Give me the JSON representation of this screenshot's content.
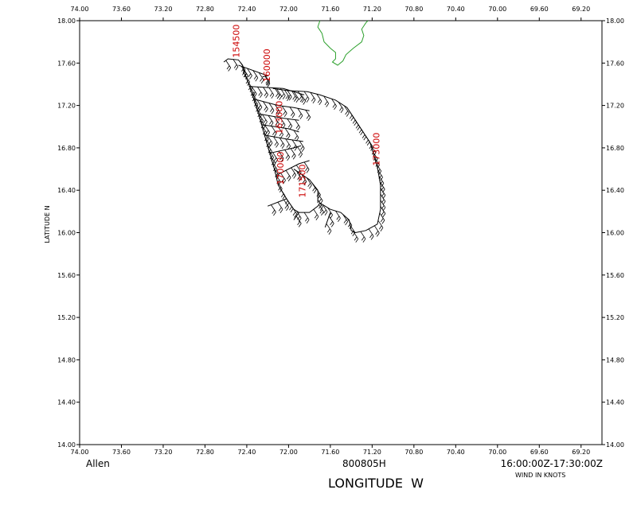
{
  "chart_data": {
    "type": "scatter",
    "xlabel": "LONGITUDE  W",
    "ylabel": "LATITUDE  N",
    "storm_name": "Allen",
    "flight_id": "800805H",
    "time_range": "16:00:00Z-17:30:00Z",
    "units_note": "WIND IN KNOTS",
    "xlim": [
      74.0,
      69.0
    ],
    "ylim": [
      14.0,
      18.0
    ],
    "x_ticks": [
      "74.00",
      "73.60",
      "73.20",
      "72.80",
      "72.40",
      "72.00",
      "71.60",
      "71.20",
      "70.80",
      "70.40",
      "70.00",
      "69.60",
      "69.20"
    ],
    "y_ticks": [
      "14.00",
      "14.40",
      "14.80",
      "15.20",
      "15.60",
      "16.00",
      "16.40",
      "16.80",
      "17.20",
      "17.60",
      "18.00"
    ],
    "time_labels": [
      {
        "text": "154500",
        "lon": 72.47,
        "lat": 17.65
      },
      {
        "text": "160000",
        "lon": 72.18,
        "lat": 17.42
      },
      {
        "text": "163000",
        "lon": 72.06,
        "lat": 16.93
      },
      {
        "text": "170000",
        "lon": 72.05,
        "lat": 16.45
      },
      {
        "text": "171500",
        "lon": 71.84,
        "lat": 16.33
      },
      {
        "text": "173000",
        "lon": 71.13,
        "lat": 16.63
      }
    ],
    "series": [
      {
        "points": [
          [
            72.62,
            17.61
          ],
          [
            72.58,
            17.64
          ],
          [
            72.48,
            17.63
          ],
          [
            72.44,
            17.58
          ],
          [
            72.43,
            17.52
          ],
          [
            72.38,
            17.4
          ],
          [
            72.33,
            17.25
          ],
          [
            72.28,
            17.1
          ],
          [
            72.23,
            16.92
          ],
          [
            72.18,
            16.75
          ],
          [
            72.13,
            16.58
          ],
          [
            72.1,
            16.45
          ],
          [
            72.02,
            16.32
          ],
          [
            71.95,
            16.22
          ],
          [
            71.9,
            16.19
          ],
          [
            71.8,
            16.19
          ],
          [
            71.72,
            16.25
          ],
          [
            71.7,
            16.28
          ],
          [
            71.6,
            16.22
          ],
          [
            71.5,
            16.19
          ],
          [
            71.42,
            16.12
          ],
          [
            71.4,
            16.02
          ],
          [
            71.36,
            16.0
          ],
          [
            71.26,
            16.02
          ],
          [
            71.15,
            16.08
          ],
          [
            71.12,
            16.22
          ],
          [
            71.12,
            16.45
          ],
          [
            71.15,
            16.62
          ],
          [
            71.22,
            16.85
          ],
          [
            71.32,
            17.0
          ],
          [
            71.44,
            17.18
          ],
          [
            71.55,
            17.25
          ],
          [
            71.7,
            17.3
          ],
          [
            71.82,
            17.33
          ],
          [
            72.0,
            17.34
          ],
          [
            72.15,
            17.36
          ]
        ]
      }
    ],
    "track_cross_legs": [
      [
        [
          72.48,
          17.58
        ],
        [
          72.2,
          17.48
        ],
        [
          72.25,
          17.47
        ]
      ],
      [
        [
          72.38,
          17.38
        ],
        [
          72.05,
          17.36
        ],
        [
          71.85,
          17.3
        ]
      ],
      [
        [
          72.33,
          17.26
        ],
        [
          72.1,
          17.2
        ],
        [
          71.95,
          17.18
        ],
        [
          71.8,
          17.15
        ]
      ],
      [
        [
          72.28,
          17.12
        ],
        [
          72.05,
          17.08
        ],
        [
          71.9,
          17.06
        ]
      ],
      [
        [
          72.26,
          17.02
        ],
        [
          72.0,
          16.98
        ],
        [
          71.9,
          16.95
        ]
      ],
      [
        [
          72.23,
          16.92
        ],
        [
          72.0,
          16.88
        ],
        [
          71.86,
          16.86
        ]
      ],
      [
        [
          72.18,
          16.75
        ],
        [
          71.95,
          16.8
        ],
        [
          71.88,
          16.82
        ]
      ],
      [
        [
          72.1,
          16.55
        ],
        [
          71.9,
          16.65
        ],
        [
          71.8,
          16.68
        ]
      ],
      [
        [
          71.95,
          16.6
        ],
        [
          71.8,
          16.5
        ],
        [
          71.72,
          16.4
        ],
        [
          71.72,
          16.28
        ]
      ],
      [
        [
          72.02,
          16.32
        ],
        [
          72.07,
          16.3
        ],
        [
          72.2,
          16.25
        ]
      ],
      [
        [
          71.9,
          16.19
        ],
        [
          71.95,
          16.12
        ]
      ],
      [
        [
          71.6,
          16.19
        ],
        [
          71.65,
          16.05
        ]
      ]
    ],
    "coast": [
      [
        71.7,
        18.0
      ],
      [
        71.72,
        17.94
      ],
      [
        71.68,
        17.88
      ],
      [
        71.66,
        17.8
      ],
      [
        71.6,
        17.74
      ],
      [
        71.55,
        17.7
      ],
      [
        71.55,
        17.64
      ],
      [
        71.58,
        17.61
      ],
      [
        71.53,
        17.58
      ],
      [
        71.48,
        17.62
      ],
      [
        71.45,
        17.68
      ],
      [
        71.38,
        17.74
      ],
      [
        71.3,
        17.8
      ],
      [
        71.28,
        17.86
      ],
      [
        71.3,
        17.92
      ],
      [
        71.26,
        17.98
      ],
      [
        71.24,
        18.0
      ]
    ]
  }
}
